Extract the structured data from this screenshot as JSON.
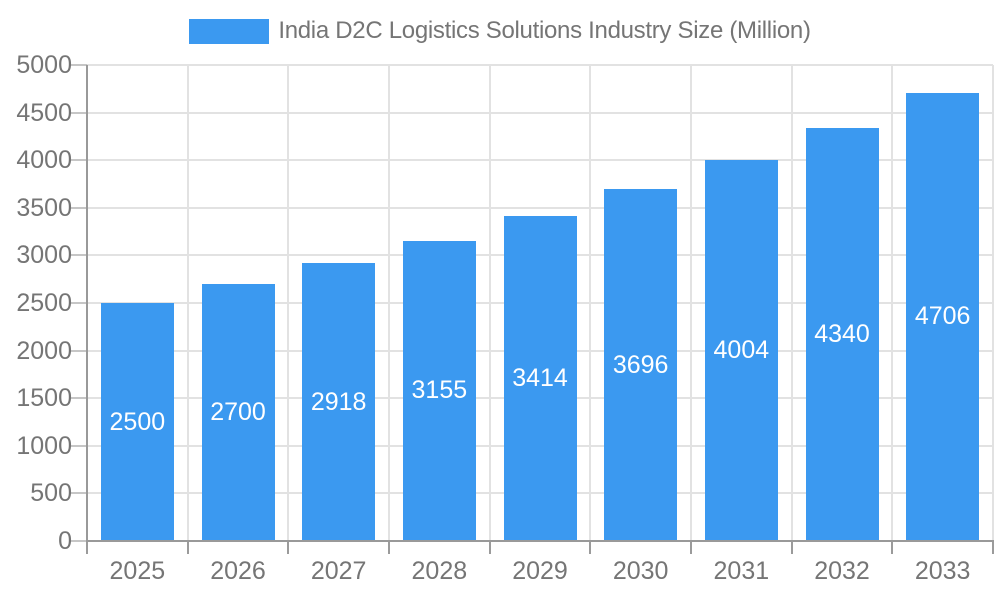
{
  "chart_data": {
    "type": "bar",
    "title": "India D2C Logistics Solutions Industry Size (Million)",
    "categories": [
      "2025",
      "2026",
      "2027",
      "2028",
      "2029",
      "2030",
      "2031",
      "2032",
      "2033"
    ],
    "values": [
      2500,
      2700,
      2918,
      3155,
      3414,
      3696,
      4004,
      4340,
      4706
    ],
    "series_name": "India D2C Logistics Solutions Industry Size (Million)",
    "xlabel": "",
    "ylabel": "",
    "ylim": [
      0,
      5000
    ],
    "ytick_step": 500,
    "yticks": [
      0,
      500,
      1000,
      1500,
      2000,
      2500,
      3000,
      3500,
      4000,
      4500,
      5000
    ],
    "grid": true,
    "legend_position": "top",
    "value_labels_position": "inside-center",
    "bar_color": "#3B99F0",
    "value_label_color": "#FFFFFF",
    "axis_text_color": "#757575"
  }
}
